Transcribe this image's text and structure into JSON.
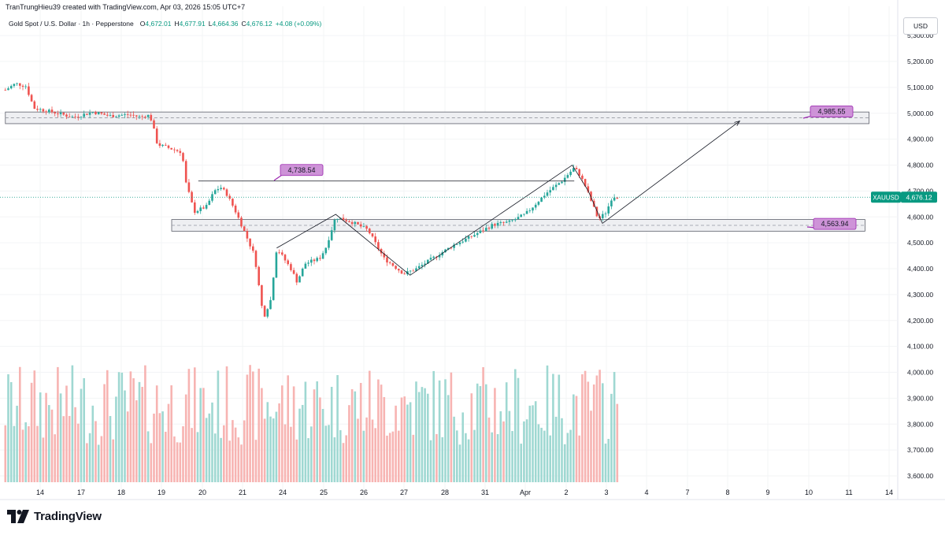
{
  "header": {
    "author_line": "TranTrungHieu39 created with TradingView.com, Apr 03, 2026 15:05 UTC+7",
    "symbol_desc": "Gold Spot / U.S. Dollar · 1h · Pepperstone",
    "open_key": "O",
    "open_val": "4,672.01",
    "high_key": "H",
    "high_val": "4,677.91",
    "low_key": "L",
    "low_val": "4,664.36",
    "close_key": "C",
    "close_val": "4,676.12",
    "change": "+4.08 (+0.09%)"
  },
  "currency": "USD",
  "brand": {
    "name": "TradingView"
  },
  "colors": {
    "up": "#26a69a",
    "down": "#ef5350",
    "up_vol": "#9fd8d2",
    "down_vol": "#f7b4b2",
    "accent": "#089981",
    "label_purple": "#ce93d8"
  },
  "chart_data": {
    "type": "candlestick",
    "symbol": "XAUUSD",
    "last_price": 4676.12,
    "last_price_label": "4,676.12",
    "y_ticks": [
      "5,300.00",
      "5,200.00",
      "5,100.00",
      "5,000.00",
      "4,900.00",
      "4,800.00",
      "4,700.00",
      "4,600.00",
      "4,500.00",
      "4,400.00",
      "4,300.00",
      "4,200.00",
      "4,100.00",
      "4,000.00",
      "3,900.00",
      "3,800.00",
      "3,700.00",
      "3,600.00"
    ],
    "y_tick_values": [
      5300,
      5200,
      5100,
      5000,
      4900,
      4800,
      4700,
      4600,
      4500,
      4400,
      4300,
      4200,
      4100,
      4000,
      3900,
      3800,
      3700,
      3600
    ],
    "x_ticks": [
      {
        "label": "14",
        "day": 0
      },
      {
        "label": "17",
        "day": 1
      },
      {
        "label": "18",
        "day": 2
      },
      {
        "label": "19",
        "day": 3
      },
      {
        "label": "20",
        "day": 4
      },
      {
        "label": "21",
        "day": 5
      },
      {
        "label": "24",
        "day": 6
      },
      {
        "label": "25",
        "day": 7
      },
      {
        "label": "26",
        "day": 8
      },
      {
        "label": "27",
        "day": 9
      },
      {
        "label": "28",
        "day": 10
      },
      {
        "label": "31",
        "day": 11
      },
      {
        "label": "Apr",
        "day": 12
      },
      {
        "label": "2",
        "day": 13
      },
      {
        "label": "3",
        "day": 14
      },
      {
        "label": "4",
        "day": 15
      },
      {
        "label": "7",
        "day": 16
      },
      {
        "label": "8",
        "day": 17
      },
      {
        "label": "9",
        "day": 18
      },
      {
        "label": "10",
        "day": 19
      },
      {
        "label": "11",
        "day": 20
      },
      {
        "label": "14",
        "day": 21
      }
    ],
    "price_path": [
      [
        -0.85,
        5090
      ],
      [
        -0.6,
        5115
      ],
      [
        -0.35,
        5105
      ],
      [
        -0.15,
        5020
      ],
      [
        0.3,
        5005
      ],
      [
        0.8,
        4985
      ],
      [
        1.3,
        5005
      ],
      [
        1.7,
        4990
      ],
      [
        2.2,
        4995
      ],
      [
        2.5,
        4985
      ],
      [
        2.65,
        4995
      ],
      [
        2.75,
        4975
      ],
      [
        2.9,
        4880
      ],
      [
        3.1,
        4870
      ],
      [
        3.3,
        4860
      ],
      [
        3.5,
        4850
      ],
      [
        3.6,
        4730
      ],
      [
        3.8,
        4620
      ],
      [
        4.1,
        4640
      ],
      [
        4.3,
        4700
      ],
      [
        4.45,
        4715
      ],
      [
        4.6,
        4690
      ],
      [
        4.8,
        4630
      ],
      [
        5.0,
        4560
      ],
      [
        5.3,
        4450
      ],
      [
        5.52,
        4210
      ],
      [
        5.7,
        4280
      ],
      [
        5.85,
        4480
      ],
      [
        6.2,
        4400
      ],
      [
        6.35,
        4350
      ],
      [
        6.55,
        4420
      ],
      [
        6.9,
        4440
      ],
      [
        7.05,
        4480
      ],
      [
        7.3,
        4600
      ],
      [
        7.7,
        4580
      ],
      [
        8.1,
        4550
      ],
      [
        8.5,
        4440
      ],
      [
        9.0,
        4380
      ],
      [
        9.3,
        4400
      ],
      [
        9.8,
        4450
      ],
      [
        10.2,
        4490
      ],
      [
        10.6,
        4520
      ],
      [
        11.2,
        4570
      ],
      [
        11.6,
        4580
      ],
      [
        12.0,
        4610
      ],
      [
        12.5,
        4690
      ],
      [
        12.9,
        4740
      ],
      [
        13.2,
        4790
      ],
      [
        13.35,
        4760
      ],
      [
        13.5,
        4710
      ],
      [
        13.65,
        4650
      ],
      [
        13.8,
        4590
      ],
      [
        14.0,
        4620
      ],
      [
        14.15,
        4680
      ],
      [
        14.3,
        4676
      ]
    ],
    "volume_range": [
      3600,
      4050
    ],
    "zones": [
      {
        "name": "upper-zone",
        "from": 4960,
        "to": 5005,
        "x_start": -0.85,
        "x_end": 20.5
      },
      {
        "name": "lower-zone",
        "from": 4545,
        "to": 4590,
        "x_start": 3.25,
        "x_end": 20.4
      }
    ],
    "annotations": [
      {
        "label": "4,985.55",
        "price": 4985.55
      },
      {
        "label": "4,738.54",
        "price": 4738.54
      },
      {
        "label": "4,563.94",
        "price": 4563.94
      }
    ],
    "resistance_line": {
      "price": 4738.54,
      "x_start": 3.9,
      "x_end": 13.2
    },
    "pattern_points": [
      [
        5.85,
        4480
      ],
      [
        7.3,
        4610
      ],
      [
        9.15,
        4375
      ],
      [
        13.15,
        4800
      ],
      [
        13.55,
        4700
      ],
      [
        13.9,
        4575
      ]
    ],
    "projection": {
      "from": [
        13.9,
        4575
      ],
      "to": [
        17.3,
        4970
      ]
    },
    "xlabel": "",
    "ylabel": ""
  }
}
